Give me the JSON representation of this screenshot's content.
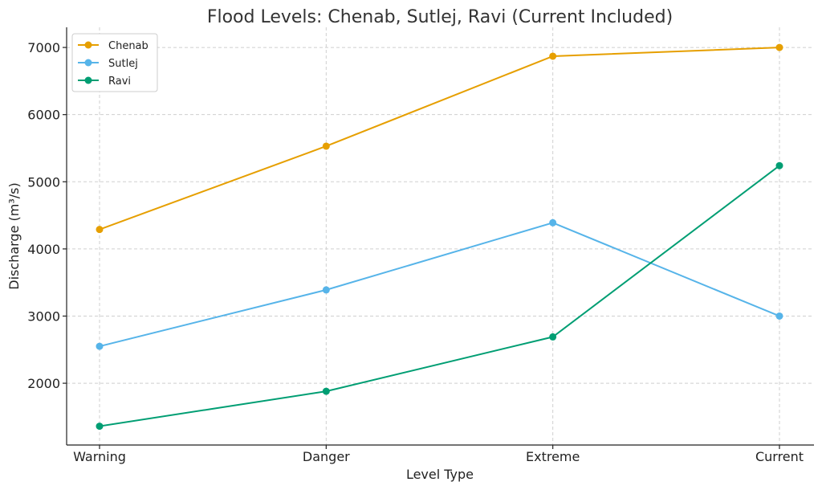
{
  "chart_data": {
    "type": "line",
    "title": "Flood Levels: Chenab, Sutlej, Ravi (Current Included)",
    "xlabel": "Level Type",
    "ylabel": "Discharge (m³/s)",
    "categories": [
      "Warning",
      "Danger",
      "Extreme",
      "Current"
    ],
    "yticks": [
      2000,
      3000,
      4000,
      5000,
      6000,
      7000
    ],
    "ylim": [
      1080,
      7300
    ],
    "grid": true,
    "legend_position": "top-left",
    "series": [
      {
        "name": "Chenab",
        "color": "#E69F00",
        "values": [
          4290,
          5530,
          6870,
          7000
        ]
      },
      {
        "name": "Sutlej",
        "color": "#56B4E9",
        "values": [
          2550,
          3390,
          4390,
          3000
        ]
      },
      {
        "name": "Ravi",
        "color": "#009E73",
        "values": [
          1360,
          1880,
          2690,
          5240
        ]
      }
    ]
  }
}
